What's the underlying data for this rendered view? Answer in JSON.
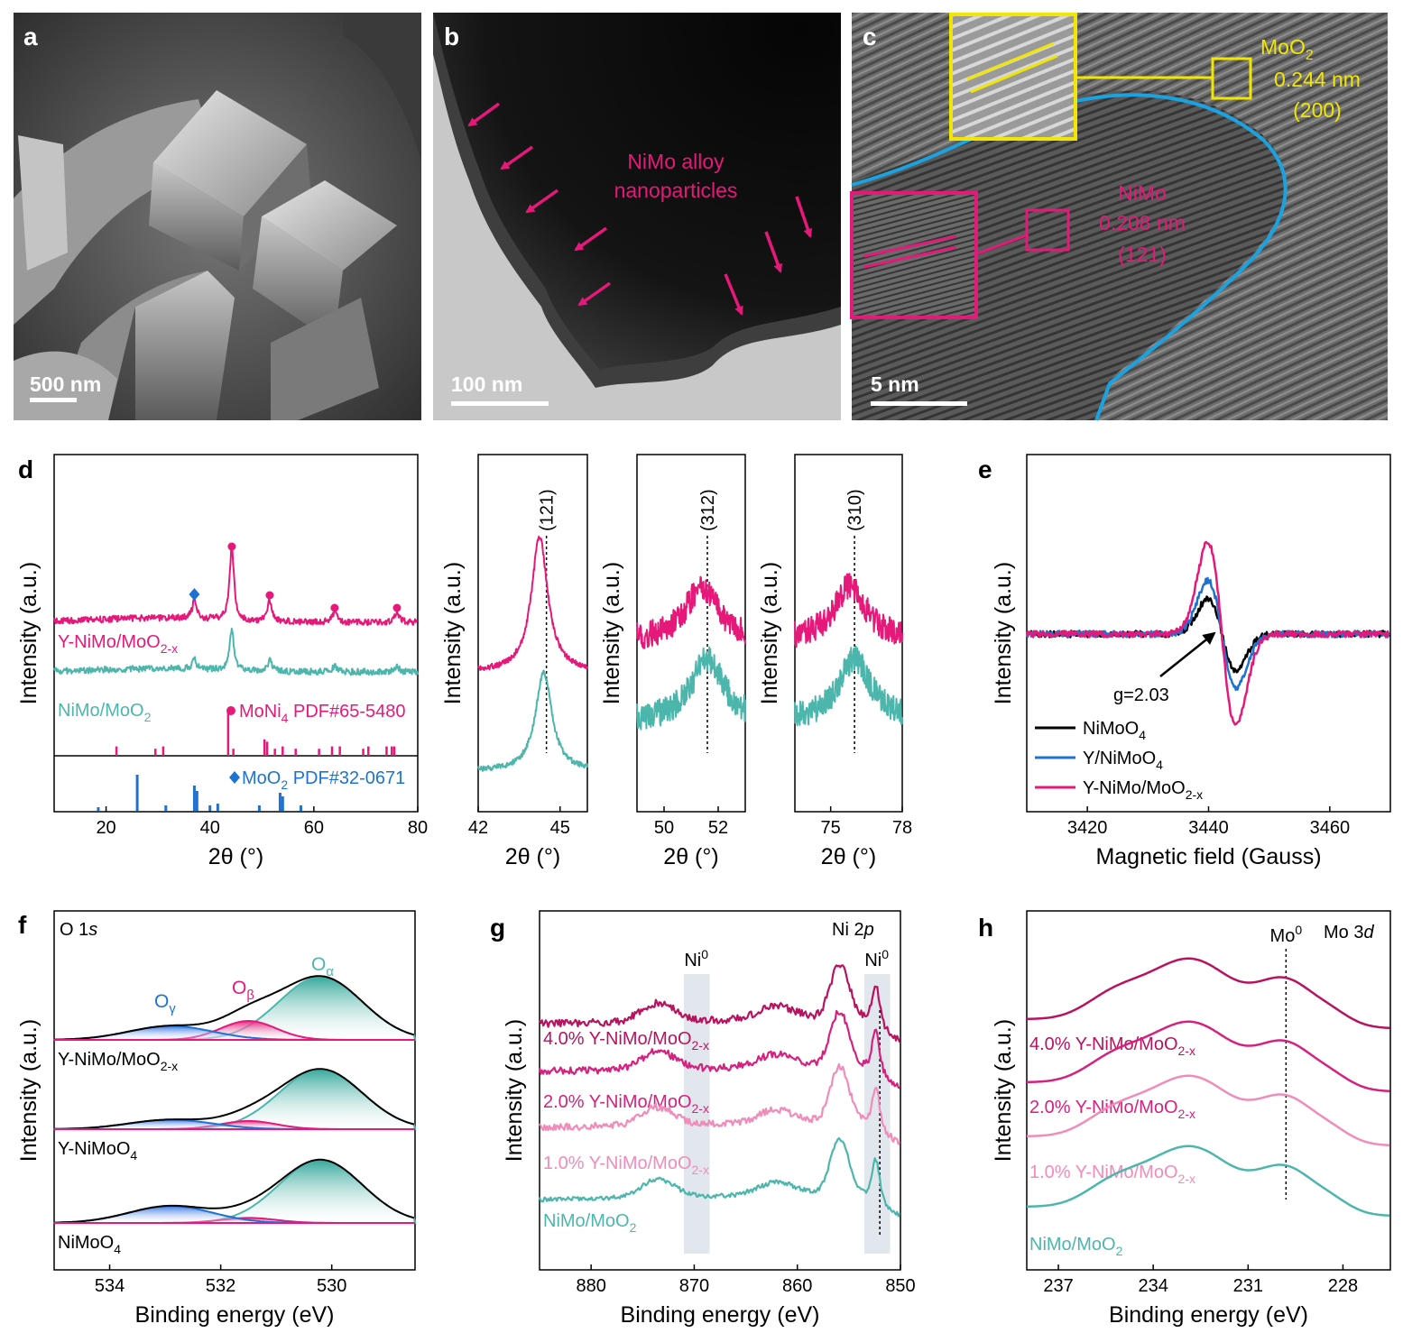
{
  "colors": {
    "pink": "#e6197a",
    "teal": "#4db6ac",
    "blue": "#1e73d2",
    "cyan": "#1aa3e0",
    "yellow": "#f2e600",
    "magenta": "#d5217f",
    "black": "#000000",
    "lightpink": "#f08cba",
    "darkmagenta": "#b8135f"
  },
  "panels": {
    "a": {
      "label": "a",
      "scale_bar": "500 nm"
    },
    "b": {
      "label": "b",
      "scale_bar": "100 nm",
      "annotation_line1": "NiMo alloy",
      "annotation_line2": "nanoparticles"
    },
    "c": {
      "label": "c",
      "scale_bar": "5 nm",
      "moo2": {
        "phase": "MoO",
        "sub": "2",
        "spacing": "0.244 nm",
        "plane": "(200)"
      },
      "nimo": {
        "phase": "NiMo",
        "spacing": "0.208 nm",
        "plane": "(121)"
      }
    }
  },
  "chart_data": [
    {
      "id": "d-main",
      "panel_label": "d",
      "type": "line",
      "xlabel": "2θ (°)",
      "ylabel": "Intensity (a.u.)",
      "xlim": [
        10,
        80
      ],
      "xticks": [
        20,
        40,
        60,
        80
      ],
      "series": [
        {
          "name": "Y-NiMo/MoO",
          "sub": "2-x",
          "color": "pink",
          "peaks": [
            [
              37,
              0.25
            ],
            [
              44.2,
              1.0
            ],
            [
              51.5,
              0.3
            ],
            [
              64,
              0.15
            ],
            [
              76,
              0.15
            ]
          ]
        },
        {
          "name": "NiMo/MoO",
          "sub": "2",
          "color": "teal",
          "peaks": [
            [
              37,
              0.18
            ],
            [
              44.2,
              0.75
            ],
            [
              51.5,
              0.2
            ],
            [
              64,
              0.1
            ],
            [
              76,
              0.1
            ]
          ]
        }
      ],
      "markers": {
        "circles_x": [
          44.2,
          51.5,
          64,
          76
        ],
        "diamond_x": [
          37
        ]
      },
      "ref1": {
        "label": "MoNi",
        "sub": "4",
        "suffix": " PDF#65-5480",
        "color": "pink",
        "lines": [
          [
            22,
            0.2
          ],
          [
            29.5,
            0.15
          ],
          [
            31,
            0.2
          ],
          [
            43.5,
            1.0
          ],
          [
            44.5,
            0.15
          ],
          [
            50.5,
            0.35
          ],
          [
            51,
            0.3
          ],
          [
            52.5,
            0.15
          ],
          [
            54,
            0.2
          ],
          [
            56.5,
            0.15
          ],
          [
            61,
            0.15
          ],
          [
            63.5,
            0.2
          ],
          [
            65,
            0.2
          ],
          [
            69.5,
            0.15
          ],
          [
            70.5,
            0.2
          ],
          [
            74,
            0.2
          ],
          [
            75,
            0.2
          ],
          [
            75.5,
            0.2
          ]
        ]
      },
      "ref2": {
        "label": "MoO",
        "sub": "2",
        "suffix": " PDF#32-0671",
        "color": "blue",
        "lines": [
          [
            18.5,
            0.1
          ],
          [
            26,
            1.0
          ],
          [
            31.5,
            0.15
          ],
          [
            37,
            0.7
          ],
          [
            37.5,
            0.55
          ],
          [
            40,
            0.15
          ],
          [
            41.5,
            0.2
          ],
          [
            49.5,
            0.15
          ],
          [
            53.5,
            0.5
          ],
          [
            54,
            0.4
          ],
          [
            57.5,
            0.15
          ]
        ]
      }
    },
    {
      "id": "d-zoom1",
      "type": "line",
      "xlabel": "2θ (°)",
      "ylabel": "Intensity (a.u.)",
      "xlim": [
        42,
        46
      ],
      "xticks": [
        42,
        45
      ],
      "plane": "(121)",
      "ref_x": 44.5,
      "series": [
        {
          "name": "",
          "color": "pink",
          "center": 44.25
        },
        {
          "name": "",
          "color": "teal",
          "center": 44.4
        }
      ]
    },
    {
      "id": "d-zoom2",
      "type": "line",
      "xlabel": "2θ (°)",
      "ylabel": "Intensity (a.u.)",
      "xlim": [
        49,
        53
      ],
      "xticks": [
        50,
        52
      ],
      "plane": "(312)",
      "ref_x": 51.6,
      "series": [
        {
          "name": "",
          "color": "pink",
          "center": 51.4
        },
        {
          "name": "",
          "color": "teal",
          "center": 51.6
        }
      ]
    },
    {
      "id": "d-zoom3",
      "type": "line",
      "xlabel": "2θ (°)",
      "ylabel": "Intensity (a.u.)",
      "xlim": [
        73.5,
        78
      ],
      "xticks": [
        75,
        78
      ],
      "plane": "(310)",
      "ref_x": 76.0,
      "series": [
        {
          "name": "",
          "color": "pink",
          "center": 75.8
        },
        {
          "name": "",
          "color": "teal",
          "center": 76.0
        }
      ]
    },
    {
      "id": "e",
      "panel_label": "e",
      "type": "line",
      "xlabel": "Magnetic field (Gauss)",
      "ylabel": "Intensity (a.u.)",
      "xlim": [
        3410,
        3470
      ],
      "xticks": [
        3420,
        3440,
        3460
      ],
      "annotation": "g=2.03",
      "series": [
        {
          "name": "NiMoO",
          "sub": "4",
          "color": "black",
          "amp": 0.5
        },
        {
          "name": "Y/NiMoO",
          "sub": "4",
          "color": "blue",
          "amp": 0.75
        },
        {
          "name": "Y-NiMo/MoO",
          "sub": "2-x",
          "color": "pink",
          "amp": 1.3
        }
      ]
    },
    {
      "id": "f",
      "panel_label": "f",
      "type": "line",
      "title": "O 1s",
      "xlabel": "Binding energy (eV)",
      "ylabel": "Intensity (a.u.)",
      "xlim": [
        535,
        528.5
      ],
      "xticks": [
        534,
        532,
        530
      ],
      "component_labels": {
        "gamma": "O",
        "gamma_sub": "γ",
        "beta": "O",
        "beta_sub": "β",
        "alpha": "O",
        "alpha_sub": "α"
      },
      "series": [
        {
          "name": "Y-NiMo/MoO",
          "sub": "2-x",
          "alpha_amp": 1.0,
          "beta_amp": 0.3,
          "gamma_amp": 0.22
        },
        {
          "name": "Y-NiMoO",
          "sub": "4",
          "alpha_amp": 0.95,
          "beta_amp": 0.13,
          "gamma_amp": 0.15
        },
        {
          "name": "NiMoO",
          "sub": "4",
          "alpha_amp": 1.0,
          "beta_amp": 0.08,
          "gamma_amp": 0.27
        }
      ]
    },
    {
      "id": "g",
      "panel_label": "g",
      "type": "line",
      "title": "Ni 2",
      "title_italic": "p",
      "ni0_label": "Ni",
      "ni0_sup": "0",
      "xlabel": "Binding energy (eV)",
      "ylabel": "Intensity (a.u.)",
      "xlim": [
        885,
        850
      ],
      "xticks": [
        880,
        870,
        860,
        850
      ],
      "bands": [
        [
          871,
          868.5
        ],
        [
          853.5,
          851
        ]
      ],
      "ref_x": 852,
      "series": [
        {
          "name": "4.0% Y-NiMo/MoO",
          "sub": "2-x",
          "color": "darkmagenta"
        },
        {
          "name": "2.0% Y-NiMo/MoO",
          "sub": "2-x",
          "color": "magenta"
        },
        {
          "name": "1.0% Y-NiMo/MoO",
          "sub": "2-x",
          "color": "lightpink"
        },
        {
          "name": "NiMo/MoO",
          "sub": "2",
          "color": "teal"
        }
      ]
    },
    {
      "id": "h",
      "panel_label": "h",
      "type": "line",
      "title": "Mo 3",
      "title_italic": "d",
      "mo0_label": "Mo",
      "mo0_sup": "0",
      "xlabel": "Binding energy (eV)",
      "ylabel": "Intensity (a.u.)",
      "xlim": [
        238,
        226.5
      ],
      "xticks": [
        237,
        234,
        231,
        228
      ],
      "ref_x": 229.8,
      "series": [
        {
          "name": "4.0% Y-NiMo/MoO",
          "sub": "2-x",
          "color": "darkmagenta"
        },
        {
          "name": "2.0% Y-NiMo/MoO",
          "sub": "2-x",
          "color": "magenta"
        },
        {
          "name": "1.0% Y-NiMo/MoO",
          "sub": "2-x",
          "color": "lightpink"
        },
        {
          "name": "NiMo/MoO",
          "sub": "2",
          "color": "teal"
        }
      ]
    }
  ]
}
